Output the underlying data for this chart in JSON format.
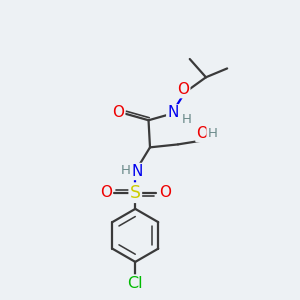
{
  "bg_color": "#edf1f4",
  "atom_colors": {
    "C": "#3a3a3a",
    "N": "#0000ee",
    "O": "#ee0000",
    "S": "#cccc00",
    "Cl": "#00bb00",
    "H": "#6a8a8a"
  },
  "bond_color": "#3a3a3a",
  "bond_width": 1.6,
  "font_size_main": 11,
  "font_size_small": 9.5
}
